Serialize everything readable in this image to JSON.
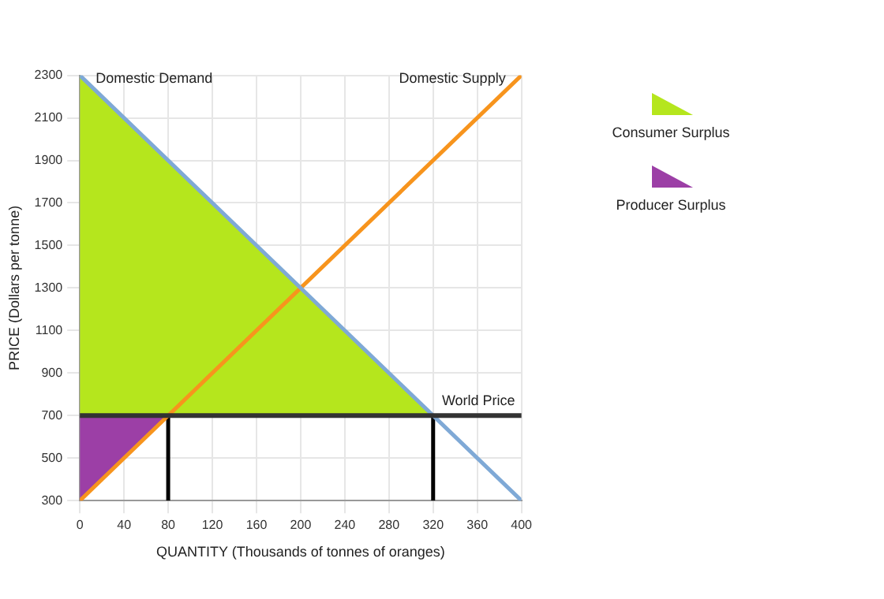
{
  "chart_data": {
    "type": "line",
    "xlabel": "QUANTITY (Thousands of tonnes of oranges)",
    "ylabel": "PRICE (Dollars per tonne)",
    "xlim": [
      0,
      400
    ],
    "ylim": [
      300,
      2300
    ],
    "xticks": [
      0,
      40,
      80,
      120,
      160,
      200,
      240,
      280,
      320,
      360,
      400
    ],
    "yticks": [
      300,
      500,
      700,
      900,
      1100,
      1300,
      1500,
      1700,
      1900,
      2100,
      2300
    ],
    "grid": true,
    "legend": "right",
    "marker": "none",
    "line_style": "solid",
    "series": [
      {
        "name": "Domestic Demand",
        "color": "#7fa9d6",
        "x": [
          0,
          400
        ],
        "values": [
          2300,
          300
        ]
      },
      {
        "name": "Domestic Supply",
        "color": "#f7941d",
        "x": [
          0,
          400
        ],
        "values": [
          300,
          2300
        ]
      },
      {
        "color": "#000000",
        "x": [
          80,
          80
        ],
        "values": [
          300,
          700
        ]
      },
      {
        "color": "#000000",
        "x": [
          320,
          320
        ],
        "values": [
          300,
          700
        ]
      },
      {
        "name": "Consumer Surplus",
        "type": "area",
        "color": "#b5e61d",
        "x": [
          0,
          320,
          0
        ],
        "values": [
          2300,
          700,
          700
        ]
      },
      {
        "name": "Producer Surplus",
        "type": "area",
        "color": "#9c3fa6",
        "x": [
          0,
          80,
          0
        ],
        "values": [
          700,
          700,
          300
        ]
      }
    ],
    "ref_lines": [
      {
        "axis": "y",
        "value": 700,
        "label": "World Price",
        "color": "#333333"
      }
    ]
  }
}
